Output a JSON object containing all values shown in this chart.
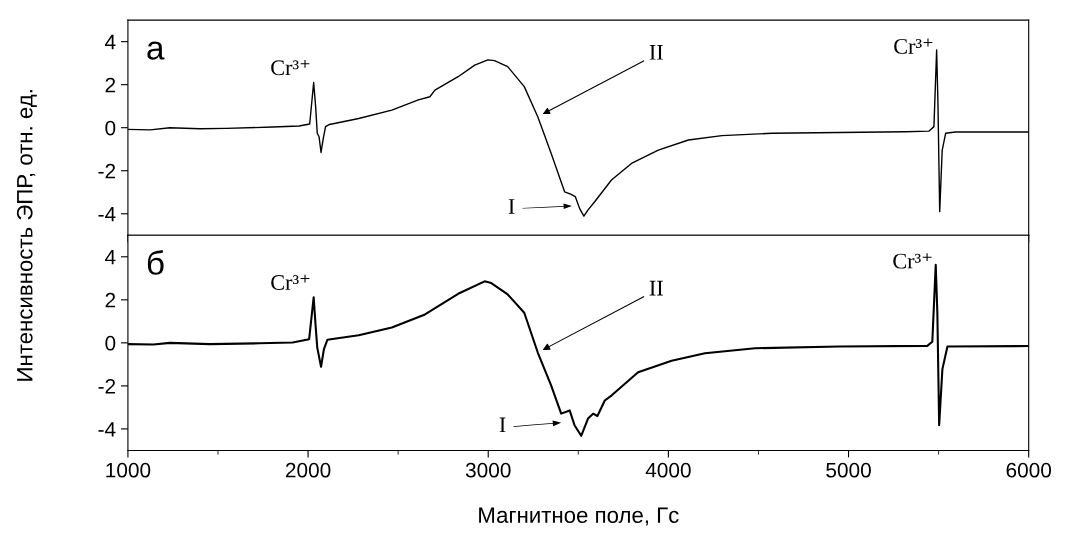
{
  "chart_data": [
    {
      "type": "line",
      "title": "а",
      "ylabel": "Интенсивность ЭПР, отн. ед.",
      "xlim": [
        1000,
        6000
      ],
      "ylim": [
        -5,
        5
      ],
      "yticks": [
        -4,
        -2,
        0,
        2,
        4
      ],
      "xticks": [
        1000,
        2000,
        3000,
        4000,
        5000,
        6000
      ],
      "tick_labels": "y",
      "legend": false,
      "grid": false,
      "annotations": [
        {
          "text": "Cr³⁺",
          "x": 2031,
          "y": 2.1
        },
        {
          "text": "Cr³⁺",
          "x": 5489,
          "y": 3.61
        },
        {
          "text": "II",
          "x": 3275,
          "y": 0.51
        },
        "I"
      ],
      "series": [
        {
          "color": "#000000",
          "x": [
            1000,
            1123,
            1233,
            1399,
            1546,
            1803,
            1950,
            2009,
            2031,
            2042,
            2051,
            2061,
            2072,
            2083,
            2097,
            2119,
            2281,
            2465,
            2612,
            2676,
            2704,
            2833,
            2925,
            2998,
            3035,
            3108,
            3200,
            3275,
            3349,
            3424,
            3461,
            3483,
            3507,
            3531,
            3553,
            3591,
            3684,
            3795,
            3944,
            4111,
            4297,
            4575,
            4947,
            5316,
            5446,
            5474,
            5489,
            5496,
            5506,
            5520,
            5539,
            5594,
            6000
          ],
          "values": [
            -0.08,
            -0.1,
            0,
            -0.05,
            -0.03,
            0.03,
            0.08,
            0.17,
            2.1,
            0.98,
            -0.26,
            -0.42,
            -1.15,
            -0.57,
            0.05,
            0.15,
            0.43,
            0.82,
            1.29,
            1.44,
            1.75,
            2.37,
            2.91,
            3.15,
            3.12,
            2.84,
            1.91,
            0.51,
            -1.19,
            -2.98,
            -3.1,
            -3.2,
            -3.75,
            -4.11,
            -3.83,
            -3.44,
            -2.43,
            -1.66,
            -1.04,
            -0.57,
            -0.37,
            -0.26,
            -0.22,
            -0.19,
            -0.16,
            0.05,
            3.61,
            1.29,
            -3.9,
            -1.04,
            -0.26,
            -0.2,
            -0.2
          ]
        }
      ]
    },
    {
      "type": "line",
      "title": "б",
      "xlabel": "Магнитное поле, Гс",
      "xlim": [
        1000,
        6000
      ],
      "ylim": [
        -5,
        5
      ],
      "yticks": [
        -4,
        -2,
        0,
        2,
        4
      ],
      "xticks": [
        1000,
        2000,
        3000,
        4000,
        5000,
        6000
      ],
      "legend": false,
      "grid": false,
      "annotations": [
        {
          "text": "Cr³⁺",
          "x": 2031,
          "y": 2.12
        },
        {
          "text": "Cr³⁺",
          "x": 5484,
          "y": 3.63
        },
        {
          "text": "II",
          "x": 3275,
          "y": -0.45
        },
        "I"
      ],
      "series": [
        {
          "color": "#000000",
          "x": [
            1000,
            1142,
            1233,
            1454,
            1730,
            1914,
            2006,
            2031,
            2042,
            2051,
            2072,
            2088,
            2107,
            2281,
            2465,
            2649,
            2833,
            2980,
            3017,
            3108,
            3200,
            3275,
            3349,
            3405,
            3452,
            3479,
            3516,
            3554,
            3582,
            3606,
            3647,
            3684,
            3832,
            4018,
            4203,
            4481,
            4947,
            5437,
            5465,
            5484,
            5493,
            5503,
            5521,
            5549,
            6000
          ],
          "values": [
            -0.06,
            -0.08,
            0,
            -0.06,
            -0.02,
            0.02,
            0.17,
            2.12,
            0.78,
            -0.22,
            -1.11,
            -0.29,
            0.14,
            0.35,
            0.71,
            1.32,
            2.28,
            2.86,
            2.78,
            2.25,
            1.4,
            -0.45,
            -1.98,
            -3.29,
            -3.14,
            -3.83,
            -4.32,
            -3.52,
            -3.29,
            -3.4,
            -2.68,
            -2.45,
            -1.37,
            -0.83,
            -0.48,
            -0.25,
            -0.17,
            -0.14,
            0.05,
            3.63,
            1.4,
            -3.83,
            -1.22,
            -0.17,
            -0.15
          ]
        }
      ]
    }
  ]
}
